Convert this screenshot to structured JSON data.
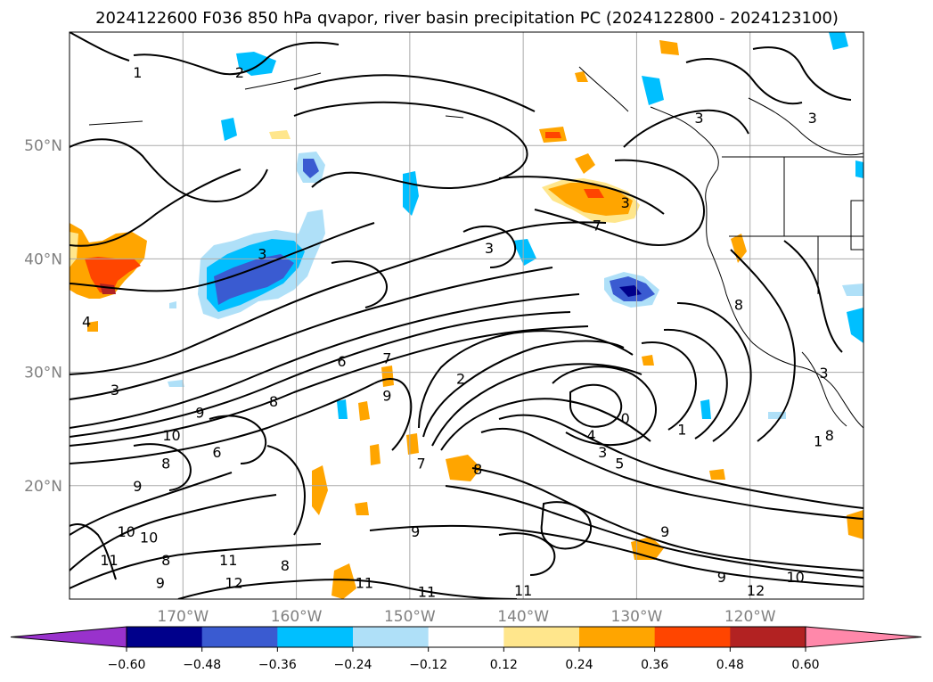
{
  "title": "2024122600 F036 850 hPa qvapor, river basin precipitation PC (2024122800 - 2024123100)",
  "map": {
    "lon_range": [
      -180,
      -110
    ],
    "lat_range": [
      10,
      60
    ],
    "lat_ticks": [
      {
        "value": 20,
        "label": "20°N"
      },
      {
        "value": 30,
        "label": "30°N"
      },
      {
        "value": 40,
        "label": "40°N"
      },
      {
        "value": 50,
        "label": "50°N"
      }
    ],
    "lon_ticks": [
      {
        "value": -170,
        "label": "170°W"
      },
      {
        "value": -160,
        "label": "160°W"
      },
      {
        "value": -150,
        "label": "150°W"
      },
      {
        "value": -140,
        "label": "140°W"
      },
      {
        "value": -130,
        "label": "130°W"
      },
      {
        "value": -120,
        "label": "120°W"
      }
    ],
    "grid": true,
    "contour_labels": [
      {
        "text": "1",
        "lon": -174,
        "lat": 56
      },
      {
        "text": "2",
        "lon": -165,
        "lat": 56
      },
      {
        "text": "3",
        "lon": -163,
        "lat": 40
      },
      {
        "text": "3",
        "lon": -176,
        "lat": 28
      },
      {
        "text": "3",
        "lon": -143,
        "lat": 40.5
      },
      {
        "text": "3",
        "lon": -131,
        "lat": 44.5
      },
      {
        "text": "3",
        "lon": -124.5,
        "lat": 52
      },
      {
        "text": "3",
        "lon": -114.5,
        "lat": 52
      },
      {
        "text": "7",
        "lon": -133.5,
        "lat": 42.5
      },
      {
        "text": "6",
        "lon": -156,
        "lat": 30.5
      },
      {
        "text": "8",
        "lon": -162,
        "lat": 27
      },
      {
        "text": "9",
        "lon": -168.5,
        "lat": 26
      },
      {
        "text": "10",
        "lon": -171,
        "lat": 24
      },
      {
        "text": "8",
        "lon": -171.5,
        "lat": 21.5
      },
      {
        "text": "6",
        "lon": -167,
        "lat": 22.5
      },
      {
        "text": "9",
        "lon": -174,
        "lat": 19.5
      },
      {
        "text": "10",
        "lon": -173,
        "lat": 15
      },
      {
        "text": "11",
        "lon": -176.5,
        "lat": 13
      },
      {
        "text": "10",
        "lon": -175,
        "lat": 15.5
      },
      {
        "text": "8",
        "lon": -171.5,
        "lat": 13
      },
      {
        "text": "9",
        "lon": -172,
        "lat": 11
      },
      {
        "text": "11",
        "lon": -166,
        "lat": 13
      },
      {
        "text": "12",
        "lon": -165.5,
        "lat": 11
      },
      {
        "text": "8",
        "lon": -161,
        "lat": 12.5
      },
      {
        "text": "11",
        "lon": -154,
        "lat": 11
      },
      {
        "text": "7",
        "lon": -152,
        "lat": 30.8
      },
      {
        "text": "9",
        "lon": -152,
        "lat": 27.5
      },
      {
        "text": "7",
        "lon": -149,
        "lat": 21.5
      },
      {
        "text": "8",
        "lon": -144,
        "lat": 21
      },
      {
        "text": "2",
        "lon": -145.5,
        "lat": 29
      },
      {
        "text": "0",
        "lon": -131,
        "lat": 25.5
      },
      {
        "text": "1",
        "lon": -126,
        "lat": 24.5
      },
      {
        "text": "4",
        "lon": -134,
        "lat": 24
      },
      {
        "text": "3",
        "lon": -133,
        "lat": 22.5
      },
      {
        "text": "5",
        "lon": -131.5,
        "lat": 21.5
      },
      {
        "text": "9",
        "lon": -149.5,
        "lat": 15.5
      },
      {
        "text": "9",
        "lon": -127.5,
        "lat": 15.5
      },
      {
        "text": "9",
        "lon": -122.5,
        "lat": 11.5
      },
      {
        "text": "10",
        "lon": -116,
        "lat": 11.5
      },
      {
        "text": "12",
        "lon": -119.5,
        "lat": 10.3
      },
      {
        "text": "11",
        "lon": -140,
        "lat": 10.3
      },
      {
        "text": "11",
        "lon": -148.5,
        "lat": 10.2
      },
      {
        "text": "8",
        "lon": -121,
        "lat": 35.5
      },
      {
        "text": "3",
        "lon": -113.5,
        "lat": 29.5
      },
      {
        "text": "8",
        "lon": -113,
        "lat": 24
      },
      {
        "text": "1",
        "lon": -114,
        "lat": 23.5
      },
      {
        "text": "4",
        "lon": -178.5,
        "lat": 34
      }
    ]
  },
  "colorbar": {
    "levels": [
      -0.6,
      -0.48,
      -0.36,
      -0.24,
      -0.12,
      0.12,
      0.24,
      0.36,
      0.48,
      0.6
    ],
    "tick_labels": [
      "−0.60",
      "−0.48",
      "−0.36",
      "−0.24",
      "−0.12",
      "0.12",
      "0.24",
      "0.36",
      "0.48",
      "0.60"
    ],
    "colors": [
      "#9932cc",
      "#00008b",
      "#3a5bd1",
      "#00bfff",
      "#afe0f8",
      "#ffffff",
      "#ffe68c",
      "#ffa500",
      "#ff4500",
      "#b22222",
      "#ff88aa"
    ]
  }
}
